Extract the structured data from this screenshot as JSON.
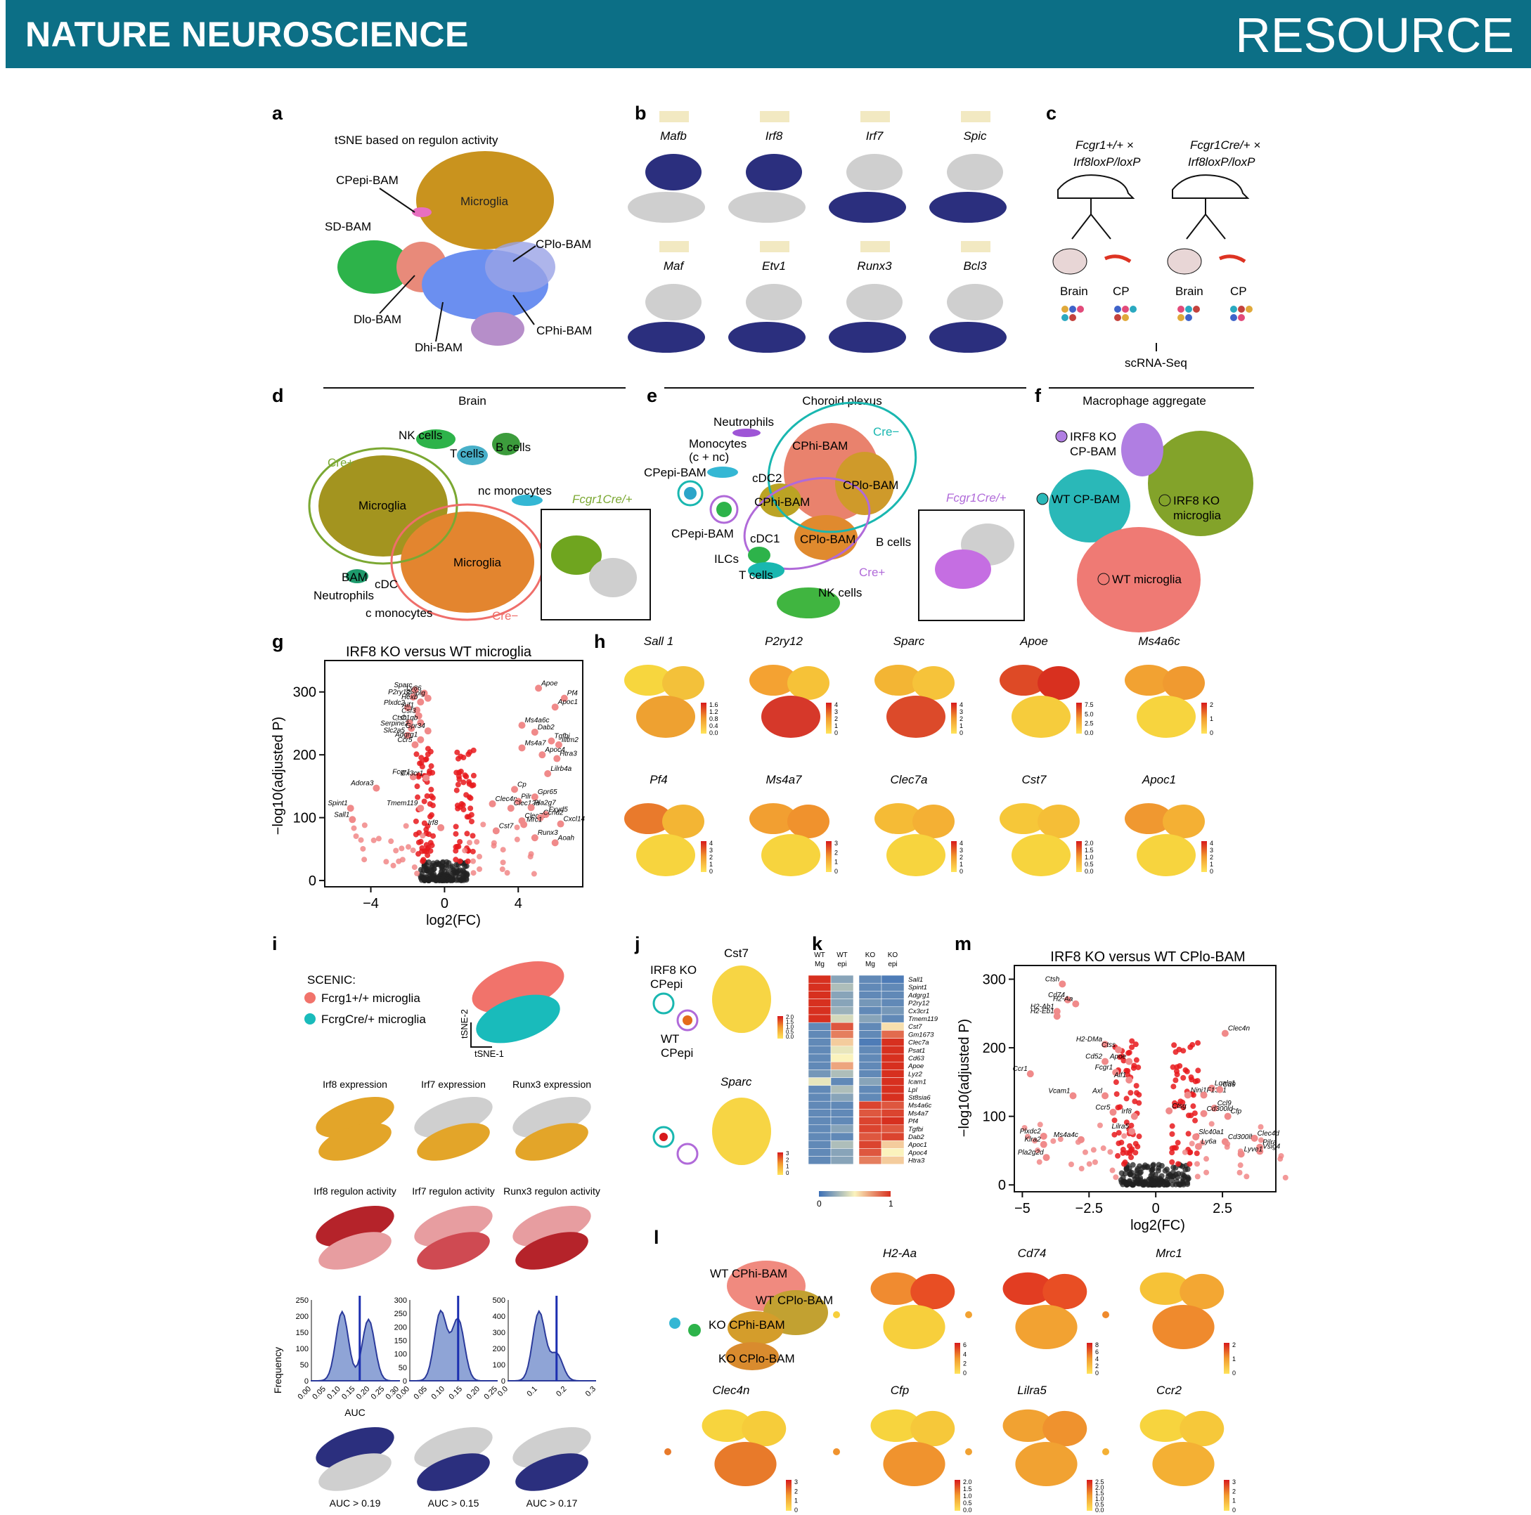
{
  "header": {
    "journal": "NATURE NEUROSCIENCE",
    "section": "RESOURCE"
  },
  "colors": {
    "banner": "#0c6f86",
    "microglia": "#c9931e",
    "sd_bam": "#2db34a",
    "cp_hi": "#6b8ff0",
    "cp_lo": "#e88a7a",
    "regulon_on": "#2b2f7e",
    "cell_off": "#cfcfcf",
    "teal": "#19b7b0",
    "purple": "#b06ad9",
    "olive": "#7ba832",
    "salmon": "#ef6e6a"
  },
  "panel_a": {
    "letter": "a",
    "title": "tSNE based on regulon activity",
    "labels": {
      "cp_epi": "CPepi-BAM",
      "microglia": "Microglia",
      "sd": "SD-BAM",
      "cp_lo": "CPlo-BAM",
      "d_lo": "Dlo-BAM",
      "cp_hi": "CPhi-BAM",
      "d_hi": "Dhi-BAM"
    }
  },
  "panel_b": {
    "letter": "b",
    "regulons": [
      "Mafb",
      "Irf8",
      "Irf7",
      "Spic",
      "Maf",
      "Etv1",
      "Runx3",
      "Bcl3"
    ]
  },
  "panel_c": {
    "letter": "c",
    "left_cross": "Fcgr1+/+ ×",
    "left_flox": "Irf8loxP/loxP",
    "right_cross": "Fcgr1Cre/+ ×",
    "right_flox": "Irf8loxP/loxP",
    "brain": "Brain",
    "cp": "CP",
    "method": "scRNA-Seq"
  },
  "panel_d": {
    "letter": "d",
    "title": "Brain",
    "labels": {
      "nk": "NK cells",
      "t": "T cells",
      "b": "B cells",
      "ncmono": "nc monocytes",
      "cre_pos": "Cre+",
      "mg1": "Microglia",
      "mg2": "Microglia",
      "bam": "BAM",
      "cdc": "cDC",
      "neut": "Neutrophils",
      "cmono": "c monocytes",
      "cre_neg": "Cre−",
      "inset": "Fcgr1Cre/+"
    }
  },
  "panel_e": {
    "letter": "e",
    "title": "Choroid plexus",
    "labels": {
      "neut": "Neutrophils",
      "mono1": "Monocytes",
      "mono2": "(c + nc)",
      "cdc2": "cDC2",
      "cpepi1": "CPepi-BAM",
      "cpepi2": "CPepi-BAM",
      "cphi1": "CPhi-BAM",
      "cplo1": "CPlo-BAM",
      "cphi2": "CPhi-BAM",
      "cplo2": "CPlo-BAM",
      "cdc1": "cDC1",
      "ilc": "ILCs",
      "t": "T cells",
      "nk": "NK cells",
      "b": "B cells",
      "cre_neg": "Cre−",
      "cre_pos": "Cre+",
      "inset": "Fcgr1Cre/+"
    }
  },
  "panel_f": {
    "letter": "f",
    "title": "Macrophage aggregate",
    "labels": {
      "ko_cp1": "IRF8 KO",
      "ko_cp2": "CP-BAM",
      "wt_cp": "WT CP-BAM",
      "ko_mg1": "IRF8 KO",
      "ko_mg2": "microglia",
      "wt_mg": "WT microglia"
    }
  },
  "panel_g": {
    "letter": "g",
    "title": "IRF8 KO versus WT microglia",
    "xlabel": "log2(FC)",
    "ylabel": "−log10(adjusted P)",
    "xticks": [
      "−4",
      "0",
      "4"
    ],
    "yticks": [
      "0",
      "100",
      "200",
      "300"
    ],
    "genes": [
      "Sparc",
      "Ly86",
      "Selplg",
      "P2ry12",
      "Hexb",
      "Plxdc2",
      "Aif1",
      "Csf3",
      "Ctsh",
      "C1qb",
      "Serpine2",
      "Gpr34",
      "Slc2a5",
      "Adgrg1",
      "Ccr5",
      "Fcgr1",
      "Cx3cr1",
      "Adora3",
      "Spint1",
      "Tmem119",
      "Sall1",
      "Irf8",
      "Apoe",
      "Pf4",
      "Apoc1",
      "Ms4a6c",
      "Dab2",
      "Tgfbi",
      "Ilitm2",
      "Ms4a7",
      "Htra3",
      "Apoc4",
      "Clec4n",
      "Pilra",
      "Lilrb4a",
      "Cp",
      "Gpr65",
      "Clec12a",
      "Clec7a",
      "Fxyd5",
      "Pla2g7",
      "Ccnd2",
      "Cst7",
      "Mrc1",
      "Cxcl14",
      "Runx3",
      "Aoah"
    ],
    "chart_data": {
      "type": "scatter",
      "title": "IRF8 KO versus WT microglia",
      "xlabel": "log2(FC)",
      "ylabel": "−log10(adjusted P)",
      "xlim": [
        -6.5,
        7.5
      ],
      "ylim": [
        -10,
        350
      ],
      "series": [
        {
          "name": "",
          "points": [
            [
              -1.6,
              303
            ],
            [
              -1.1,
              298
            ],
            [
              -0.9,
              290
            ],
            [
              -1.7,
              292
            ],
            [
              -1.3,
              284
            ],
            [
              -2.0,
              275
            ],
            [
              -1.5,
              271
            ],
            [
              -1.4,
              262
            ],
            [
              -1.9,
              251
            ],
            [
              -1.3,
              251
            ],
            [
              -1.8,
              242
            ],
            [
              -0.9,
              238
            ],
            [
              -2.0,
              231
            ],
            [
              -1.3,
              224
            ],
            [
              -1.6,
              216
            ],
            [
              -1.7,
              165
            ],
            [
              -1.0,
              163
            ],
            [
              -3.7,
              147
            ],
            [
              -5.1,
              115
            ],
            [
              -1.3,
              115
            ],
            [
              -5.0,
              97
            ],
            [
              -0.2,
              84
            ],
            [
              5.1,
              306
            ],
            [
              6.5,
              290
            ],
            [
              6.0,
              276
            ],
            [
              4.2,
              247
            ],
            [
              4.9,
              236
            ],
            [
              5.8,
              222
            ],
            [
              6.2,
              216
            ],
            [
              4.2,
              211
            ],
            [
              6.1,
              194
            ],
            [
              5.3,
              200
            ],
            [
              2.6,
              122
            ],
            [
              4.0,
              126
            ],
            [
              5.6,
              170
            ],
            [
              3.8,
              145
            ],
            [
              4.9,
              133
            ],
            [
              3.6,
              115
            ],
            [
              4.2,
              95
            ],
            [
              5.5,
              105
            ],
            [
              4.7,
              116
            ],
            [
              5.2,
              100
            ],
            [
              2.8,
              79
            ],
            [
              4.3,
              89
            ],
            [
              6.3,
              90
            ],
            [
              4.9,
              68
            ],
            [
              6.0,
              60
            ]
          ]
        }
      ]
    }
  },
  "panel_h": {
    "letter": "h",
    "genes": [
      "Sall 1",
      "P2ry12",
      "Sparc",
      "Apoe",
      "Ms4a6c",
      "Pf4",
      "Ms4a7",
      "Clec7a",
      "Cst7",
      "Apoc1"
    ],
    "scales": [
      [
        "1.6",
        "1.2",
        "0.8",
        "0.4",
        "0.0"
      ],
      [
        "4",
        "3",
        "2",
        "1",
        "0"
      ],
      [
        "4",
        "3",
        "2",
        "1",
        "0"
      ],
      [
        "7.5",
        "5.0",
        "2.5",
        "0.0"
      ],
      [
        "2",
        "1",
        "0"
      ],
      [
        "4",
        "3",
        "2",
        "1",
        "0"
      ],
      [
        "3",
        "2",
        "1",
        "0"
      ],
      [
        "4",
        "3",
        "2",
        "1",
        "0"
      ],
      [
        "2.0",
        "1.5",
        "1.0",
        "0.5",
        "0.0"
      ],
      [
        "4",
        "3",
        "2",
        "1",
        "0"
      ]
    ]
  },
  "panel_i": {
    "letter": "i",
    "legend_title": "SCENIC:",
    "legend1": "Fcrg1+/+ microglia",
    "legend2": "FcrgCre/+ microglia",
    "axis_y": "tSNE-2",
    "axis_x": "tSNE-1",
    "expr": [
      "Irf8 expression",
      "Irf7 expression",
      "Runx3 expression"
    ],
    "activity": [
      "Irf8 regulon activity",
      "Irf7 regulon activity",
      "Runx3 regulon activity"
    ],
    "hist_ylabel": "Frequency",
    "hist_xlabel": "AUC",
    "hist_yticks": [
      [
        "0",
        "50",
        "100",
        "150",
        "200",
        "250"
      ],
      [
        "0",
        "50",
        "100",
        "150",
        "200",
        "250",
        "300"
      ],
      [
        "0",
        "100",
        "200",
        "300",
        "400",
        "500"
      ]
    ],
    "hist_xticks": [
      [
        "0.00",
        "0.05",
        "0.10",
        "0.15",
        "0.20",
        "0.25",
        "0.30"
      ],
      [
        "0.00",
        "0.05",
        "0.10",
        "0.15",
        "0.20",
        "0.25"
      ],
      [
        "0.0",
        "0.1",
        "0.2",
        "0.3"
      ]
    ],
    "thresholds": [
      "AUC > 0.19",
      "AUC > 0.15",
      "AUC > 0.17"
    ]
  },
  "panel_j": {
    "letter": "j",
    "gene1": "Cst7",
    "gene2": "Sparc",
    "ko_label1": "IRF8 KO",
    "ko_label2": "CPepi",
    "wt_label1": "WT",
    "wt_label2": "CPepi",
    "scale1": [
      "2.0",
      "1.5",
      "1.0",
      "0.5",
      "0.0"
    ],
    "scale2": [
      "3",
      "2",
      "1",
      "0"
    ]
  },
  "panel_k": {
    "letter": "k",
    "columns": [
      "WT Mg",
      "WT epi",
      "KO Mg",
      "KO epi"
    ],
    "genes": [
      "Sall1",
      "Spint1",
      "Adgrg1",
      "P2ry12",
      "Cx3cr1",
      "Tmem119",
      "Cst7",
      "Gm1673",
      "Clec7a",
      "Psat1",
      "Cd63",
      "Apoe",
      "Lyz2",
      "Icam1",
      "Lpl",
      "St8sia6",
      "Ms4a6c",
      "Ms4a7",
      "Pf4",
      "Tgfbi",
      "Dab2",
      "Apoc1",
      "Apoc4",
      "Htra3"
    ],
    "scale_min": "0",
    "scale_max": "1"
  },
  "panel_l": {
    "letter": "l",
    "labels": {
      "wt_hi": "WT CPhi-BAM",
      "wt_lo": "WT CPlo-BAM",
      "ko_hi": "KO CPhi-BAM",
      "ko_lo": "KO CPlo-BAM"
    },
    "genes": [
      "H2-Aa",
      "Cd74",
      "Mrc1",
      "Clec4n",
      "Cfp",
      "Lilra5",
      "Ccr2"
    ],
    "scales": [
      [
        "6",
        "4",
        "2",
        "0"
      ],
      [
        "8",
        "6",
        "4",
        "2",
        "0"
      ],
      [
        "2",
        "1",
        "0"
      ],
      [
        "3",
        "2",
        "1",
        "0"
      ],
      [
        "2.0",
        "1.5",
        "1.0",
        "0.5",
        "0.0"
      ],
      [
        "2.5",
        "2.0",
        "1.5",
        "1.0",
        "0.5",
        "0.0"
      ],
      [
        "3",
        "2",
        "1",
        "0"
      ]
    ]
  },
  "panel_m": {
    "letter": "m",
    "title": "IRF8 KO versus WT CPlo-BAM",
    "xlabel": "log2(FC)",
    "ylabel": "−log10(adjusted P)",
    "xticks": [
      "−5",
      "−2.5",
      "0",
      "2.5"
    ],
    "yticks": [
      "0",
      "100",
      "200",
      "300"
    ],
    "genes": [
      "Ctsh",
      "Cd74",
      "H2-Aa",
      "H2-Ab1",
      "H2-Eb1",
      "Clec4n",
      "H2-DMa",
      "Ctss",
      "Cd52",
      "Apoe",
      "Ccr1",
      "Fcgr1",
      "Aif1",
      "Lgals1",
      "Vcam1",
      "Axl",
      "Ninj1",
      "F13a1",
      "Cd9",
      "Ctsg",
      "Ccl9",
      "Cd300ld",
      "Cfp",
      "Irf8",
      "Ccr5",
      "Lilra5",
      "Plxdc2",
      "Ms4a4c",
      "Slc40a1",
      "Cd300lb",
      "Clec4d",
      "Pilra",
      "Vsig4",
      "Klra2",
      "Ly6a",
      "Lyve1",
      "Pla2g2d"
    ],
    "chart_data": {
      "type": "scatter",
      "title": "IRF8 KO versus WT CPlo-BAM",
      "xlabel": "log2(FC)",
      "ylabel": "−log10(adjusted P)",
      "xlim": [
        -5.3,
        4.5
      ],
      "ylim": [
        -10,
        320
      ],
      "series": [
        {
          "name": "",
          "points": [
            [
              -3.5,
              293
            ],
            [
              -3.3,
              270
            ],
            [
              -3.0,
              264
            ],
            [
              -3.7,
              253
            ],
            [
              -3.7,
              246
            ],
            [
              2.6,
              221
            ],
            [
              -1.9,
              205
            ],
            [
              -1.4,
              197
            ],
            [
              -1.9,
              180
            ],
            [
              -1.0,
              180
            ],
            [
              -4.7,
              162
            ],
            [
              -1.5,
              164
            ],
            [
              -1.0,
              153
            ],
            [
              2.1,
              141
            ],
            [
              -3.1,
              130
            ],
            [
              -1.9,
              130
            ],
            [
              1.2,
              131
            ],
            [
              1.8,
              131
            ],
            [
              2.4,
              139
            ],
            [
              0.5,
              108
            ],
            [
              2.2,
              112
            ],
            [
              1.8,
              104
            ],
            [
              2.7,
              100
            ],
            [
              -0.8,
              100
            ],
            [
              -1.6,
              106
            ],
            [
              -0.9,
              78
            ],
            [
              -4.2,
              71
            ],
            [
              -2.8,
              66
            ],
            [
              1.5,
              70
            ],
            [
              2.6,
              63
            ],
            [
              3.7,
              68
            ],
            [
              3.9,
              55
            ],
            [
              3.9,
              49
            ],
            [
              -4.2,
              59
            ],
            [
              1.6,
              56
            ],
            [
              3.2,
              45
            ],
            [
              -4.1,
              40
            ]
          ]
        }
      ]
    }
  }
}
